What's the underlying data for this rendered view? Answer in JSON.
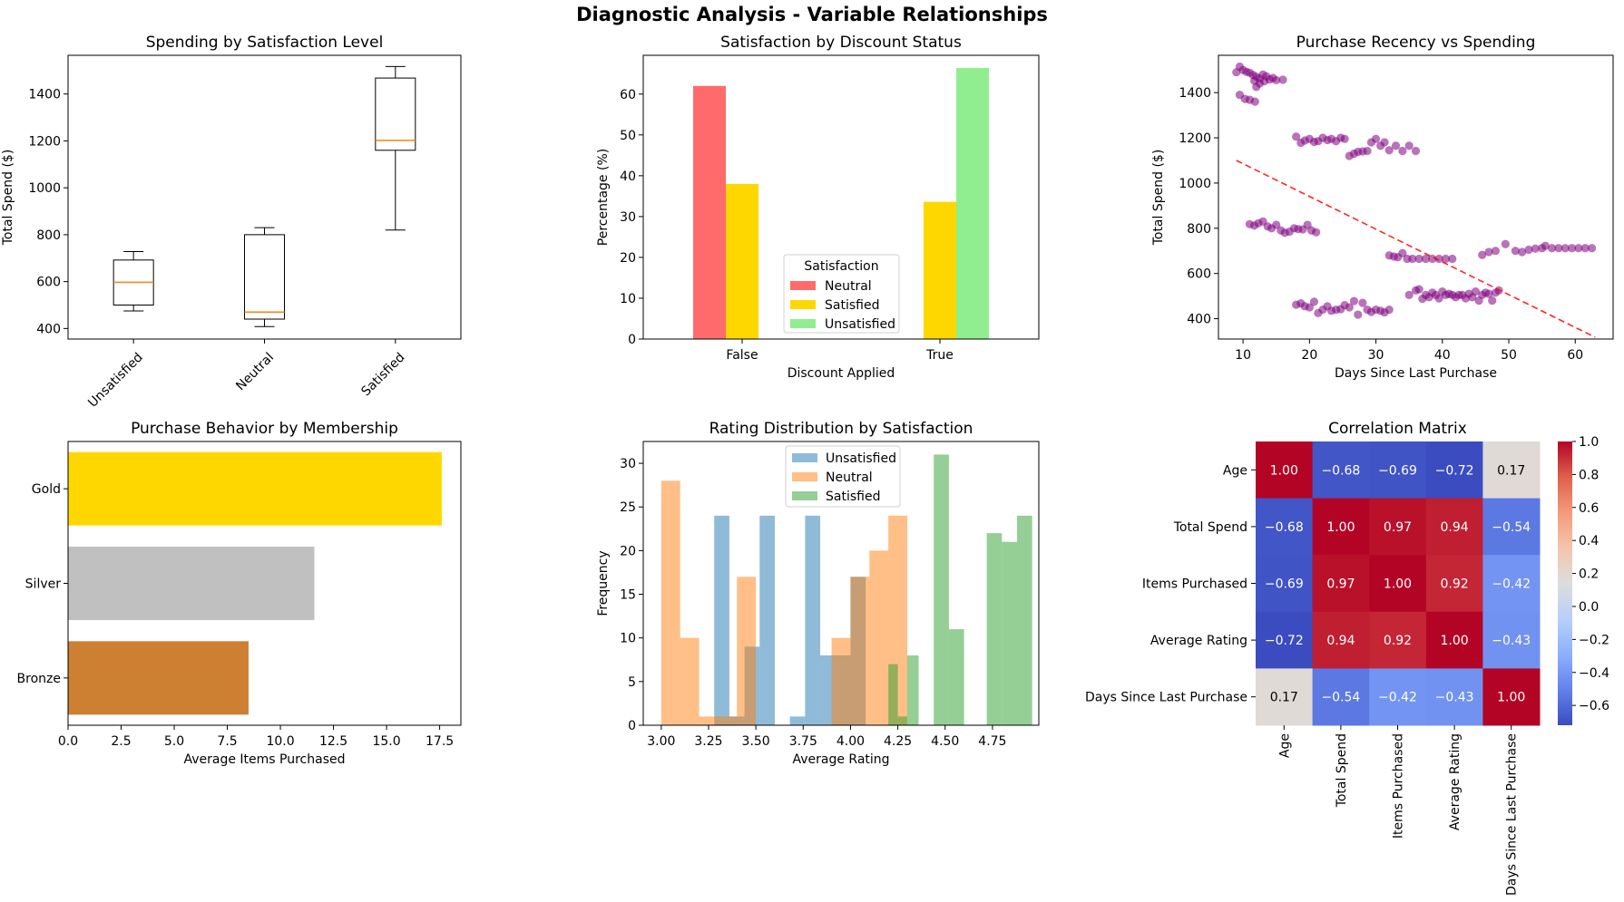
{
  "figure": {
    "suptitle": "Diagnostic Analysis - Variable Relationships"
  },
  "chart_data": [
    {
      "id": "box",
      "type": "box",
      "title": "Spending by Satisfaction Level",
      "xlabel": "",
      "ylabel": "Total Spend ($)",
      "ylim": [
        355,
        1565
      ],
      "yticks": [
        400,
        600,
        800,
        1000,
        1200,
        1400
      ],
      "categories": [
        "Unsatisfied",
        "Neutral",
        "Satisfied"
      ],
      "boxes": [
        {
          "min": 475,
          "q1": 500,
          "median": 597,
          "q3": 692,
          "max": 728
        },
        {
          "min": 408,
          "q1": 440,
          "median": 470,
          "q3": 800,
          "max": 830
        },
        {
          "min": 820,
          "q1": 1160,
          "median": 1202,
          "q3": 1468,
          "max": 1517
        }
      ],
      "colors": {
        "median": "#ff7f0e",
        "box": "#000000"
      }
    },
    {
      "id": "grouped",
      "type": "bar",
      "title": "Satisfaction by Discount Status",
      "xlabel": "Discount Applied",
      "ylabel": "Percentage (%)",
      "ylim": [
        0,
        69.5
      ],
      "yticks": [
        0,
        10,
        20,
        30,
        40,
        50,
        60
      ],
      "categories": [
        "False",
        "True"
      ],
      "legend_title": "Satisfaction",
      "legend_position": "bottom-center",
      "series": [
        {
          "name": "Neutral",
          "values": [
            62,
            0
          ],
          "color": "#ff6b6b"
        },
        {
          "name": "Satisfied",
          "values": [
            38,
            33.6
          ],
          "color": "#ffd700"
        },
        {
          "name": "Unsatisfied",
          "values": [
            0,
            66.4
          ],
          "color": "#90ee90"
        }
      ]
    },
    {
      "id": "scatter",
      "type": "scatter",
      "title": "Purchase Recency vs Spending",
      "xlabel": "Days Since Last Purchase",
      "ylabel": "Total Spend ($)",
      "xlim": [
        6.3,
        65.7
      ],
      "ylim": [
        310,
        1565
      ],
      "xticks": [
        10,
        20,
        30,
        40,
        50,
        60
      ],
      "yticks": [
        400,
        600,
        800,
        1000,
        1200,
        1400
      ],
      "point_color": "#800080",
      "trend_color": "#ff0000",
      "trend": {
        "x": [
          9,
          63
        ],
        "y": [
          1100,
          318
        ]
      },
      "points": [
        [
          9,
          1490
        ],
        [
          9.5,
          1515
        ],
        [
          10,
          1500
        ],
        [
          10.5,
          1492
        ],
        [
          11,
          1488
        ],
        [
          11.5,
          1478
        ],
        [
          12,
          1470
        ],
        [
          12.5,
          1462
        ],
        [
          13,
          1480
        ],
        [
          13.5,
          1472
        ],
        [
          14,
          1458
        ],
        [
          14.5,
          1465
        ],
        [
          15,
          1455
        ],
        [
          16,
          1457
        ],
        [
          12,
          1425
        ],
        [
          12.5,
          1440
        ],
        [
          9.5,
          1390
        ],
        [
          10.3,
          1372
        ],
        [
          11,
          1368
        ],
        [
          11.8,
          1360
        ],
        [
          13.2,
          1450
        ],
        [
          11.7,
          1452
        ],
        [
          18,
          1205
        ],
        [
          18.7,
          1178
        ],
        [
          19.3,
          1188
        ],
        [
          20,
          1195
        ],
        [
          20.7,
          1182
        ],
        [
          21.3,
          1185
        ],
        [
          22,
          1200
        ],
        [
          22.7,
          1190
        ],
        [
          23.3,
          1195
        ],
        [
          24,
          1185
        ],
        [
          24.7,
          1200
        ],
        [
          25.3,
          1195
        ],
        [
          26,
          1120
        ],
        [
          26.7,
          1130
        ],
        [
          27.3,
          1138
        ],
        [
          28,
          1140
        ],
        [
          28.7,
          1142
        ],
        [
          29.3,
          1180
        ],
        [
          30,
          1195
        ],
        [
          30.7,
          1165
        ],
        [
          31.3,
          1180
        ],
        [
          32,
          1145
        ],
        [
          33,
          1165
        ],
        [
          34,
          1142
        ],
        [
          35,
          1165
        ],
        [
          36,
          1142
        ],
        [
          11,
          818
        ],
        [
          11.7,
          812
        ],
        [
          12.3,
          822
        ],
        [
          13,
          830
        ],
        [
          13.7,
          808
        ],
        [
          14.3,
          800
        ],
        [
          15,
          815
        ],
        [
          15.7,
          790
        ],
        [
          16.3,
          780
        ],
        [
          17,
          785
        ],
        [
          17.7,
          800
        ],
        [
          18.3,
          796
        ],
        [
          19,
          795
        ],
        [
          19.7,
          815
        ],
        [
          20.3,
          790
        ],
        [
          21,
          782
        ],
        [
          32,
          680
        ],
        [
          32.7,
          675
        ],
        [
          33.3,
          672
        ],
        [
          34,
          690
        ],
        [
          34.7,
          665
        ],
        [
          35.5,
          665
        ],
        [
          36.5,
          665
        ],
        [
          37.5,
          665
        ],
        [
          38.5,
          665
        ],
        [
          39.5,
          665
        ],
        [
          40.5,
          665
        ],
        [
          41.5,
          665
        ],
        [
          18,
          462
        ],
        [
          18.7,
          468
        ],
        [
          19.3,
          455
        ],
        [
          20,
          450
        ],
        [
          20.7,
          475
        ],
        [
          21.3,
          425
        ],
        [
          22,
          440
        ],
        [
          22.7,
          455
        ],
        [
          23.3,
          435
        ],
        [
          24,
          440
        ],
        [
          24.7,
          442
        ],
        [
          25.3,
          460
        ],
        [
          26,
          450
        ],
        [
          26.7,
          478
        ],
        [
          27.3,
          418
        ],
        [
          28,
          470
        ],
        [
          28.7,
          440
        ],
        [
          29.3,
          430
        ],
        [
          30,
          440
        ],
        [
          30.7,
          435
        ],
        [
          31.3,
          428
        ],
        [
          32,
          440
        ],
        [
          35,
          505
        ],
        [
          36,
          525
        ],
        [
          36.5,
          530
        ],
        [
          37,
          488
        ],
        [
          37.5,
          505
        ],
        [
          38,
          495
        ],
        [
          38.5,
          515
        ],
        [
          39,
          505
        ],
        [
          39.5,
          490
        ],
        [
          40,
          520
        ],
        [
          40.5,
          505
        ],
        [
          41,
          510
        ],
        [
          41.5,
          505
        ],
        [
          42,
          495
        ],
        [
          42.5,
          505
        ],
        [
          43,
          505
        ],
        [
          43.5,
          490
        ],
        [
          44,
          510
        ],
        [
          44.5,
          495
        ],
        [
          45,
          520
        ],
        [
          45.5,
          480
        ],
        [
          46,
          505
        ],
        [
          46.5,
          515
        ],
        [
          47,
          510
        ],
        [
          47.5,
          480
        ],
        [
          48,
          515
        ],
        [
          48.5,
          525
        ],
        [
          46,
          682
        ],
        [
          47,
          695
        ],
        [
          48,
          700
        ],
        [
          49.5,
          730
        ],
        [
          51,
          700
        ],
        [
          52,
          695
        ],
        [
          53,
          705
        ],
        [
          54,
          710
        ],
        [
          55,
          712
        ],
        [
          55.5,
          722
        ],
        [
          56.5,
          712
        ],
        [
          57.5,
          712
        ],
        [
          58.5,
          712
        ],
        [
          59.5,
          712
        ],
        [
          60.5,
          712
        ],
        [
          61.5,
          712
        ],
        [
          62.5,
          712
        ]
      ]
    },
    {
      "id": "hbar",
      "type": "bar",
      "orientation": "horizontal",
      "title": "Purchase Behavior by Membership",
      "xlabel": "Average Items Purchased",
      "ylabel": "",
      "xlim": [
        0,
        18.5
      ],
      "xticks": [
        0.0,
        2.5,
        5.0,
        7.5,
        10.0,
        12.5,
        15.0,
        17.5
      ],
      "categories": [
        "Gold",
        "Silver",
        "Bronze"
      ],
      "values": [
        17.6,
        11.6,
        8.5
      ],
      "colors": [
        "#ffd700",
        "#c0c0c0",
        "#cd7f32"
      ]
    },
    {
      "id": "hist",
      "type": "bar",
      "subtype": "histogram",
      "title": "Rating Distribution by Satisfaction",
      "xlabel": "Average Rating",
      "ylabel": "Frequency",
      "xlim": [
        2.905,
        4.995
      ],
      "ylim": [
        0,
        32.5
      ],
      "xticks": [
        3.0,
        3.25,
        3.5,
        3.75,
        4.0,
        4.25,
        4.5,
        4.75
      ],
      "yticks": [
        0,
        5,
        10,
        15,
        20,
        25,
        30
      ],
      "legend_position": "top-center",
      "series": [
        {
          "name": "Unsatisfied",
          "color": "#1f77b4",
          "bins": [
            [
              3.28,
              3.36,
              24
            ],
            [
              3.36,
              3.44,
              1
            ],
            [
              3.44,
              3.52,
              9
            ],
            [
              3.52,
              3.6,
              24
            ],
            [
              3.68,
              3.76,
              1
            ],
            [
              3.76,
              3.84,
              24
            ],
            [
              3.84,
              3.92,
              8
            ],
            [
              3.92,
              4.0,
              8
            ],
            [
              4.0,
              4.08,
              17
            ]
          ]
        },
        {
          "name": "Neutral",
          "color": "#ff7f0e",
          "bins": [
            [
              3.0,
              3.1,
              28
            ],
            [
              3.1,
              3.2,
              10
            ],
            [
              3.2,
              3.3,
              1
            ],
            [
              3.3,
              3.4,
              1
            ],
            [
              3.4,
              3.5,
              17
            ],
            [
              3.9,
              4.0,
              10
            ],
            [
              4.0,
              4.1,
              17
            ],
            [
              4.1,
              4.2,
              20
            ],
            [
              4.2,
              4.3,
              24
            ]
          ]
        },
        {
          "name": "Satisfied",
          "color": "#2ca02c",
          "bins": [
            [
              4.2,
              4.25,
              7
            ],
            [
              4.25,
              4.3,
              1
            ],
            [
              4.3,
              4.36,
              8
            ],
            [
              4.44,
              4.52,
              31
            ],
            [
              4.52,
              4.6,
              11
            ],
            [
              4.72,
              4.8,
              22
            ],
            [
              4.8,
              4.88,
              21
            ],
            [
              4.88,
              4.96,
              24
            ]
          ]
        }
      ]
    },
    {
      "id": "heatmap",
      "type": "heatmap",
      "title": "Correlation Matrix",
      "labels": [
        "Age",
        "Total Spend",
        "Items Purchased",
        "Average Rating",
        "Days Since Last Purchase"
      ],
      "matrix": [
        [
          1.0,
          -0.68,
          -0.69,
          -0.72,
          0.17
        ],
        [
          -0.68,
          1.0,
          0.97,
          0.94,
          -0.54
        ],
        [
          -0.69,
          0.97,
          1.0,
          0.92,
          -0.42
        ],
        [
          -0.72,
          0.94,
          0.92,
          1.0,
          -0.43
        ],
        [
          0.17,
          -0.54,
          -0.42,
          -0.43,
          1.0
        ]
      ],
      "colorbar": {
        "min": -0.72,
        "max": 1.0,
        "ticks": [
          1.0,
          0.8,
          0.6,
          0.4,
          0.2,
          0.0,
          -0.2,
          -0.4,
          -0.6
        ]
      },
      "colormap": "coolwarm"
    }
  ]
}
